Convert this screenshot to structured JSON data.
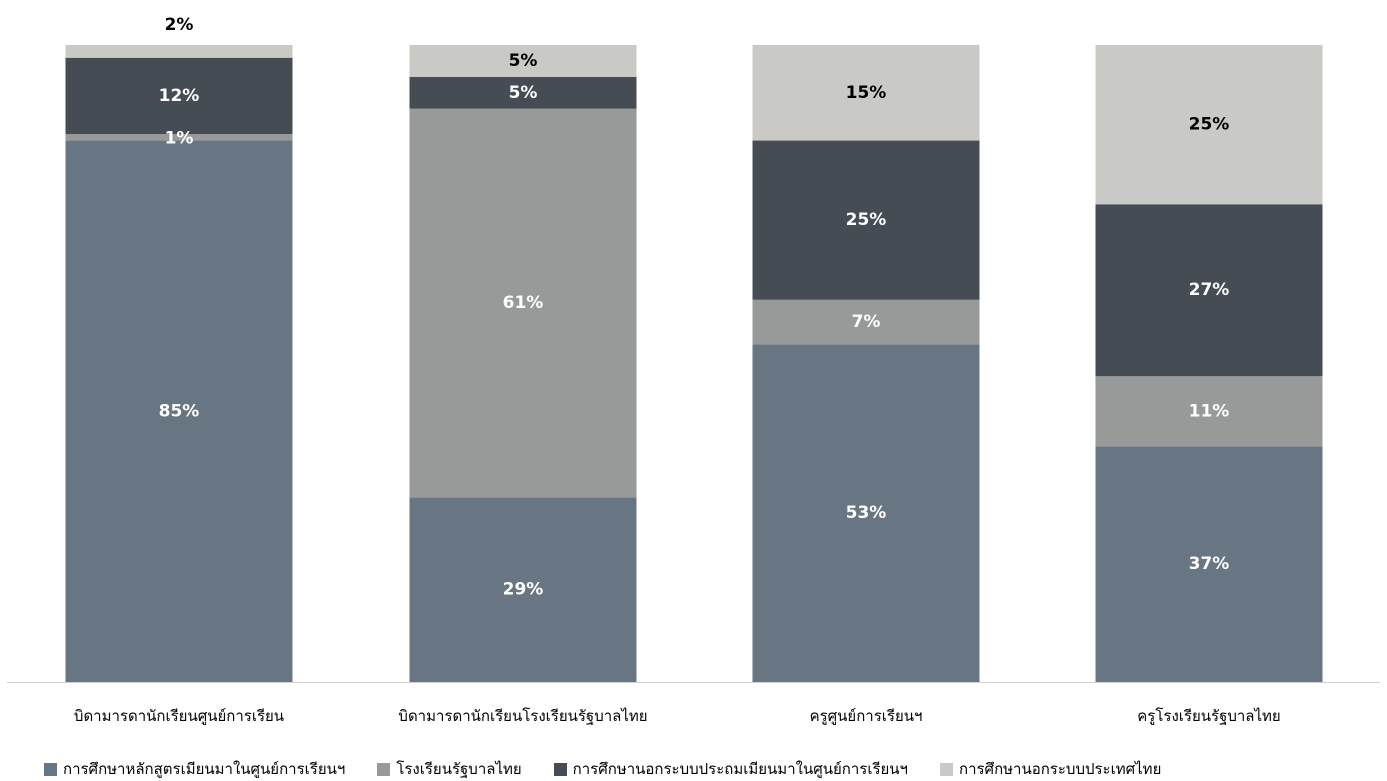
{
  "chart_data": {
    "type": "bar",
    "stacked": true,
    "categories": [
      "บิดามารดานักเรียนศูนย์การเรียน",
      "บิดามารดานักเรียนโรงเรียนรัฐบาลไทย",
      "ครูศูนย์การเรียนฯ",
      "ครูโรงเรียนรัฐบาลไทย"
    ],
    "series": [
      {
        "name": "การศึกษาหลักสูตรเมียนมาในศูนย์การเรียนฯ",
        "color": "#687684",
        "label_color": "#ffffff",
        "values": [
          85,
          29,
          53,
          37
        ],
        "labels": [
          "85%",
          "29%",
          "53%",
          "37%"
        ]
      },
      {
        "name": "โรงเรียนรัฐบาลไทย",
        "color": "#989a99",
        "label_color": "#ffffff",
        "values": [
          1,
          61,
          7,
          11
        ],
        "labels": [
          "1%",
          "61%",
          "7%",
          "11%"
        ]
      },
      {
        "name": "การศึกษานอกระบบประถมเมียนมาในศูนย์การเรียนฯ",
        "color": "#454c54",
        "label_color": "#ffffff",
        "values": [
          12,
          5,
          25,
          27
        ],
        "labels": [
          "12%",
          "5%",
          "25%",
          "27%"
        ]
      },
      {
        "name": "การศึกษานอกระบบประเทศไทย",
        "color": "#c9c9c5",
        "label_color": "#000000",
        "values": [
          2,
          5,
          15,
          25
        ],
        "labels": [
          "2%",
          "5%",
          "15%",
          "25%"
        ]
      }
    ],
    "legend_position": "bottom",
    "grid": false,
    "ylim": [
      0,
      100
    ]
  }
}
